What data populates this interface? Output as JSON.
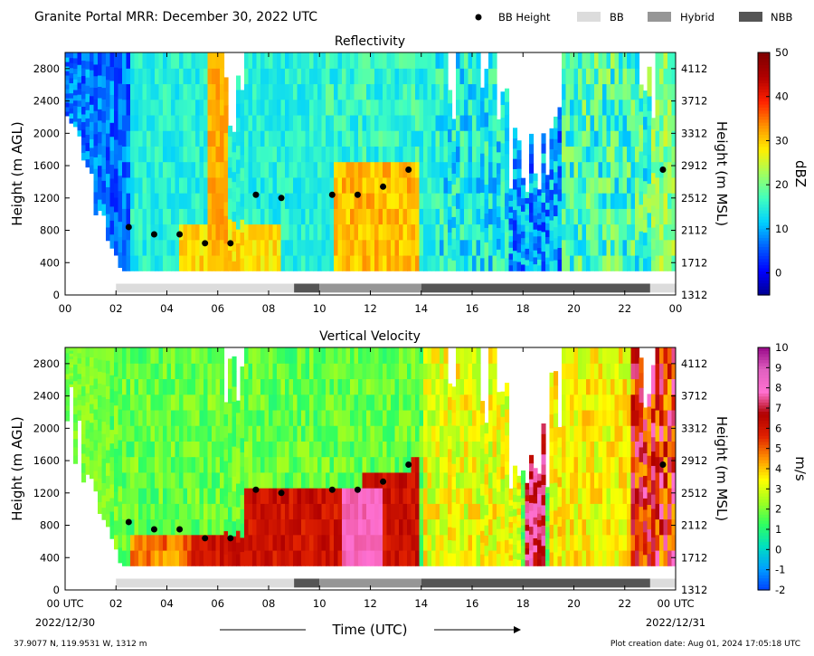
{
  "header": {
    "title": "Granite Portal MRR:  December 30, 2022 UTC"
  },
  "legend": {
    "items": [
      {
        "label": "BB Height",
        "marker": "dot",
        "color": "#000000"
      },
      {
        "label": "BB",
        "marker": "swatch",
        "color": "#dcdcdc"
      },
      {
        "label": "Hybrid",
        "marker": "swatch",
        "color": "#969696"
      },
      {
        "label": "NBB",
        "marker": "swatch",
        "color": "#555555"
      }
    ]
  },
  "chart_data": [
    {
      "type": "heatmap",
      "title": "Reflectivity",
      "ylabel": "Height (m AGL)",
      "y2label": "Height (m MSL)",
      "colorbar_label": "dBZ",
      "x_ticks": [
        "00",
        "02",
        "04",
        "06",
        "08",
        "10",
        "12",
        "14",
        "16",
        "18",
        "20",
        "22",
        "00"
      ],
      "y_ticks": [
        0,
        400,
        800,
        1200,
        1600,
        2000,
        2400,
        2800
      ],
      "y2_ticks": [
        1312,
        1712,
        2112,
        2512,
        2912,
        3312,
        3712,
        4112
      ],
      "ylim": [
        0,
        3000
      ],
      "xlim": [
        0,
        24
      ],
      "colorbar_ticks": [
        0,
        10,
        20,
        30,
        40,
        50
      ],
      "colorbar_range": [
        -5,
        50
      ],
      "colorbar_colors": [
        "#00008f",
        "#0000ff",
        "#0060ff",
        "#00d0ff",
        "#40ffbf",
        "#a0ff60",
        "#ffef00",
        "#ff9000",
        "#ff2000",
        "#b00000",
        "#7f0000"
      ],
      "bb_height_points": [
        {
          "x": 2.5,
          "y": 840
        },
        {
          "x": 3.5,
          "y": 750
        },
        {
          "x": 4.5,
          "y": 750
        },
        {
          "x": 5.5,
          "y": 640
        },
        {
          "x": 6.5,
          "y": 640
        },
        {
          "x": 7.5,
          "y": 1240
        },
        {
          "x": 8.5,
          "y": 1200
        },
        {
          "x": 10.5,
          "y": 1240
        },
        {
          "x": 11.5,
          "y": 1240
        },
        {
          "x": 12.5,
          "y": 1340
        },
        {
          "x": 13.5,
          "y": 1550
        },
        {
          "x": 23.5,
          "y": 1550
        }
      ],
      "bb_type_segments": [
        {
          "start": 2.0,
          "end": 9.0,
          "type": "BB"
        },
        {
          "start": 9.0,
          "end": 10.0,
          "type": "NBB"
        },
        {
          "start": 10.0,
          "end": 14.0,
          "type": "Hybrid"
        },
        {
          "start": 14.0,
          "end": 23.0,
          "type": "NBB"
        },
        {
          "start": 23.0,
          "end": 24.0,
          "type": "BB"
        }
      ]
    },
    {
      "type": "heatmap",
      "title": "Vertical Velocity",
      "ylabel": "Height (m AGL)",
      "y2label": "Height (m MSL)",
      "colorbar_label": "m/s",
      "x_ticks": [
        "00 UTC",
        "02",
        "04",
        "06",
        "08",
        "10",
        "12",
        "14",
        "16",
        "18",
        "20",
        "22",
        "00 UTC"
      ],
      "x_date_left": "2022/12/30",
      "x_date_right": "2022/12/31",
      "xlabel": "Time (UTC)",
      "y_ticks": [
        0,
        400,
        800,
        1200,
        1600,
        2000,
        2400,
        2800
      ],
      "y2_ticks": [
        1312,
        1712,
        2112,
        2512,
        2912,
        3312,
        3712,
        4112
      ],
      "ylim": [
        0,
        3000
      ],
      "xlim": [
        0,
        24
      ],
      "colorbar_ticks": [
        -2,
        -1,
        0,
        1,
        2,
        3,
        4,
        5,
        6,
        7,
        8,
        9,
        10
      ],
      "colorbar_range": [
        -2,
        10
      ],
      "colorbar_colors": [
        "#0040ff",
        "#00a0ff",
        "#00e0c0",
        "#30ff60",
        "#a0ff20",
        "#ffff00",
        "#ff9000",
        "#e02000",
        "#b00000",
        "#ff70d0",
        "#e060c0",
        "#9a0a8a"
      ],
      "bb_height_points": [
        {
          "x": 2.5,
          "y": 840
        },
        {
          "x": 3.5,
          "y": 750
        },
        {
          "x": 4.5,
          "y": 750
        },
        {
          "x": 5.5,
          "y": 640
        },
        {
          "x": 6.5,
          "y": 640
        },
        {
          "x": 7.5,
          "y": 1240
        },
        {
          "x": 8.5,
          "y": 1200
        },
        {
          "x": 10.5,
          "y": 1240
        },
        {
          "x": 11.5,
          "y": 1240
        },
        {
          "x": 12.5,
          "y": 1340
        },
        {
          "x": 13.5,
          "y": 1550
        },
        {
          "x": 23.5,
          "y": 1550
        }
      ],
      "bb_type_segments": [
        {
          "start": 2.0,
          "end": 9.0,
          "type": "BB"
        },
        {
          "start": 9.0,
          "end": 10.0,
          "type": "NBB"
        },
        {
          "start": 10.0,
          "end": 14.0,
          "type": "Hybrid"
        },
        {
          "start": 14.0,
          "end": 23.0,
          "type": "NBB"
        },
        {
          "start": 23.0,
          "end": 24.0,
          "type": "BB"
        }
      ]
    }
  ],
  "footer": {
    "location": "37.9077 N, 119.9531 W, 1312 m",
    "creation": "Plot creation date: Aug 01, 2024 17:05:18 UTC"
  }
}
